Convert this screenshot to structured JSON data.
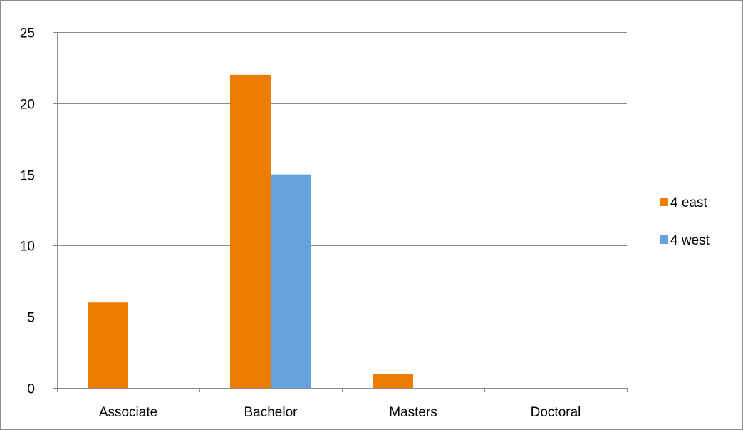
{
  "chart_data": {
    "type": "bar",
    "title": "",
    "xlabel": "",
    "ylabel": "",
    "categories": [
      "Associate",
      "Bachelor",
      "Masters",
      "Doctoral"
    ],
    "series": [
      {
        "name": "4 east",
        "color": "#ed7d00",
        "values": [
          6,
          22,
          1,
          0
        ]
      },
      {
        "name": "4 west",
        "color": "#66a3de",
        "values": [
          0,
          15,
          0,
          0
        ]
      }
    ],
    "ylim": [
      0,
      25
    ],
    "yticks": [
      0,
      5,
      10,
      15,
      20,
      25
    ],
    "grid": true,
    "legend_position": "right"
  }
}
